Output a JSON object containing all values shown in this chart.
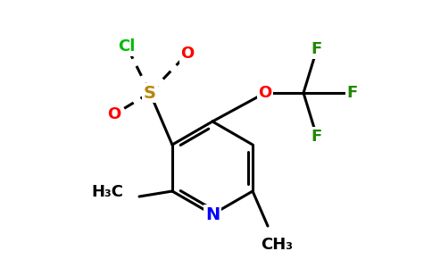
{
  "background_color": "#ffffff",
  "figsize": [
    4.84,
    3.0
  ],
  "dpi": 100,
  "atom_colors": {
    "C": "#000000",
    "N": "#0000ff",
    "O": "#ff0000",
    "S": "#b8860b",
    "Cl": "#00bb00",
    "F": "#228800",
    "H": "#000000"
  },
  "bond_color": "#000000",
  "bond_width": 2.2,
  "font_size": 12
}
